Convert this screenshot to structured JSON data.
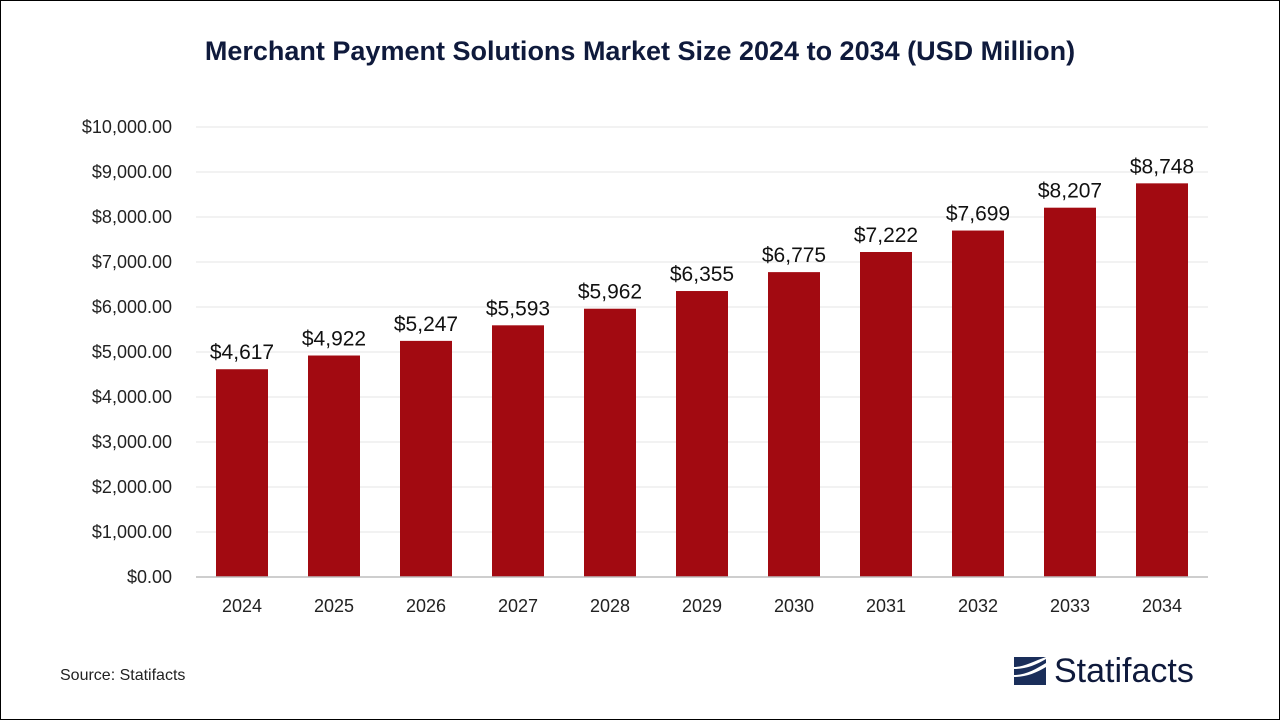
{
  "title": "Merchant Payment Solutions Market Size 2024 to 2034 (USD Million)",
  "source": "Source: Statifacts",
  "brand": {
    "name": "Statifacts",
    "icon": "statifacts-logo-icon",
    "color": "#1a2e5a"
  },
  "colors": {
    "bar": "#a20a11",
    "title": "#0f1a3c",
    "grid": "#e6e6e6",
    "axis": "#bdbdbd"
  },
  "chart_data": {
    "type": "bar",
    "title": "Merchant Payment Solutions Market Size 2024 to 2034 (USD Million)",
    "xlabel": "",
    "ylabel": "",
    "categories": [
      "2024",
      "2025",
      "2026",
      "2027",
      "2028",
      "2029",
      "2030",
      "2031",
      "2032",
      "2033",
      "2034"
    ],
    "values": [
      4617,
      4922,
      5247,
      5593,
      5962,
      6355,
      6775,
      7222,
      7699,
      8207,
      8748
    ],
    "data_labels": [
      "$4,617",
      "$4,922",
      "$5,247",
      "$5,593",
      "$5,962",
      "$6,355",
      "$6,775",
      "$7,222",
      "$7,699",
      "$8,207",
      "$8,748"
    ],
    "ylim": [
      0,
      10000
    ],
    "yticks": [
      0,
      1000,
      2000,
      3000,
      4000,
      5000,
      6000,
      7000,
      8000,
      9000,
      10000
    ],
    "ytick_labels": [
      "$0.00",
      "$1,000.00",
      "$2,000.00",
      "$3,000.00",
      "$4,000.00",
      "$5,000.00",
      "$6,000.00",
      "$7,000.00",
      "$8,000.00",
      "$9,000.00",
      "$10,000.00"
    ],
    "grid": true,
    "legend": "none"
  }
}
